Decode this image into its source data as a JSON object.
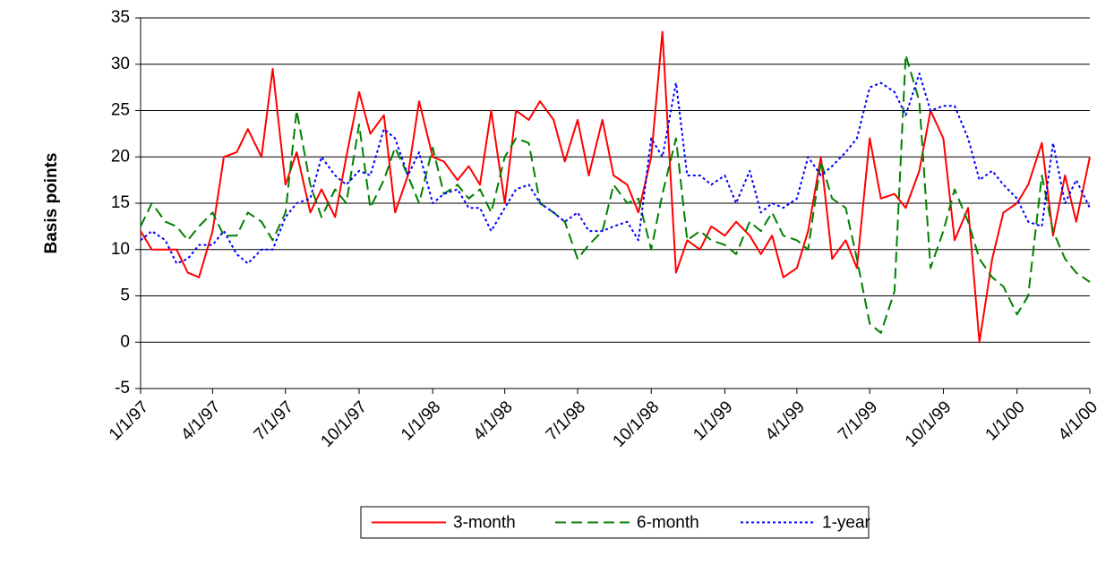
{
  "chart_data": {
    "type": "line",
    "y_label": "Basis points",
    "x": [
      "1/1/97",
      "1/15/97",
      "2/1/97",
      "2/15/97",
      "3/1/97",
      "3/15/97",
      "4/1/97",
      "4/15/97",
      "5/1/97",
      "5/15/97",
      "6/1/97",
      "6/15/97",
      "7/1/97",
      "7/15/97",
      "8/1/97",
      "8/15/97",
      "9/1/97",
      "9/15/97",
      "10/1/97",
      "10/15/97",
      "11/1/97",
      "11/15/97",
      "12/1/97",
      "12/15/97",
      "1/1/98",
      "1/15/98",
      "2/1/98",
      "2/15/98",
      "3/1/98",
      "3/15/98",
      "4/1/98",
      "4/15/98",
      "5/1/98",
      "5/15/98",
      "6/1/98",
      "6/15/98",
      "7/1/98",
      "7/15/98",
      "8/1/98",
      "8/15/98",
      "9/1/98",
      "9/15/98",
      "10/1/98",
      "10/15/98",
      "11/1/98",
      "11/15/98",
      "12/1/98",
      "12/15/98",
      "1/1/99",
      "1/15/99",
      "2/1/99",
      "2/15/99",
      "3/1/99",
      "3/15/99",
      "4/1/99",
      "4/15/99",
      "5/1/99",
      "5/15/99",
      "6/1/99",
      "6/15/99",
      "7/1/99",
      "7/15/99",
      "8/1/99",
      "8/15/99",
      "9/1/99",
      "9/15/99",
      "10/1/99",
      "10/15/99",
      "11/1/99",
      "11/15/99",
      "12/1/99",
      "12/15/99",
      "1/1/00",
      "1/15/00",
      "2/1/00",
      "2/15/00",
      "3/1/00",
      "3/15/00",
      "4/1/00"
    ],
    "series": [
      {
        "name": "3-month",
        "color": "#ff0000",
        "dash": "solid",
        "values": [
          12,
          10,
          10,
          10,
          7.5,
          7,
          12,
          20,
          20.5,
          23,
          20,
          29.5,
          17,
          20.5,
          14,
          16.5,
          13.5,
          20,
          27,
          22.5,
          24.5,
          14,
          18,
          26,
          20,
          19.5,
          17.5,
          19,
          17,
          25,
          15,
          25,
          24,
          26,
          24,
          19.5,
          24,
          18,
          24,
          18,
          17,
          14,
          20,
          33.5,
          7.5,
          11,
          10,
          12.5,
          11.5,
          13,
          11.5,
          9.5,
          11.5,
          7,
          8,
          12,
          20,
          9,
          11,
          8,
          22,
          15.5,
          16,
          14.5,
          18.5,
          25,
          22,
          11,
          14.5,
          0,
          9,
          14,
          15,
          17,
          21.5,
          11.5,
          18,
          13,
          20
        ]
      },
      {
        "name": "6-month",
        "color": "#008000",
        "dash": "dashed",
        "values": [
          12.5,
          15,
          13,
          12.5,
          11,
          12.5,
          14,
          11.5,
          11.5,
          14,
          13,
          11,
          14,
          25,
          17,
          13.5,
          16.5,
          15,
          23.5,
          14.5,
          17.5,
          21,
          18,
          15,
          21,
          16,
          17,
          15.5,
          16.5,
          14,
          20,
          22,
          21.5,
          15,
          14,
          13,
          9,
          10.5,
          12,
          17,
          15,
          15.5,
          10,
          16,
          22,
          11,
          12,
          11,
          10.5,
          9.5,
          13,
          12,
          14,
          11.5,
          11,
          10,
          19.5,
          15.5,
          14.5,
          9,
          2,
          1,
          5.5,
          31,
          26,
          8,
          12,
          16.5,
          13,
          9,
          7,
          6,
          3,
          5,
          18,
          12,
          9,
          7.5,
          6.5
        ]
      },
      {
        "name": "1-year",
        "color": "#0000ff",
        "dash": "dotted",
        "values": [
          11,
          12,
          11,
          8.5,
          9,
          10.5,
          10.5,
          12,
          9.5,
          8.5,
          10,
          10,
          13.5,
          15,
          15.5,
          20,
          18,
          17,
          18.5,
          18,
          23,
          22,
          18,
          20.5,
          15,
          16,
          16.5,
          14.5,
          14.5,
          12,
          14.5,
          16.5,
          17,
          15,
          14,
          13,
          14,
          12,
          12,
          12.5,
          13,
          11,
          22,
          20,
          28,
          18,
          18,
          17,
          18,
          15,
          18.5,
          14,
          15,
          14.5,
          15.5,
          20,
          18,
          19,
          20.5,
          22,
          27.5,
          28,
          27,
          24.5,
          29,
          25,
          25.5,
          25.5,
          22,
          17.5,
          18.5,
          17,
          15.5,
          13,
          12.5,
          21.5,
          15,
          17.5,
          14.5
        ]
      }
    ],
    "xlim": [
      "1/1/97",
      "4/1/00"
    ],
    "xticks": [
      "1/1/97",
      "4/1/97",
      "7/1/97",
      "10/1/97",
      "1/1/98",
      "4/1/98",
      "7/1/98",
      "10/1/98",
      "1/1/99",
      "4/1/99",
      "7/1/99",
      "10/1/99",
      "1/1/00",
      "4/1/00"
    ],
    "ylim": [
      -5,
      35
    ],
    "yticks": [
      -5,
      0,
      5,
      10,
      15,
      20,
      25,
      30,
      35
    ],
    "grid": true,
    "legend": "bottom"
  }
}
